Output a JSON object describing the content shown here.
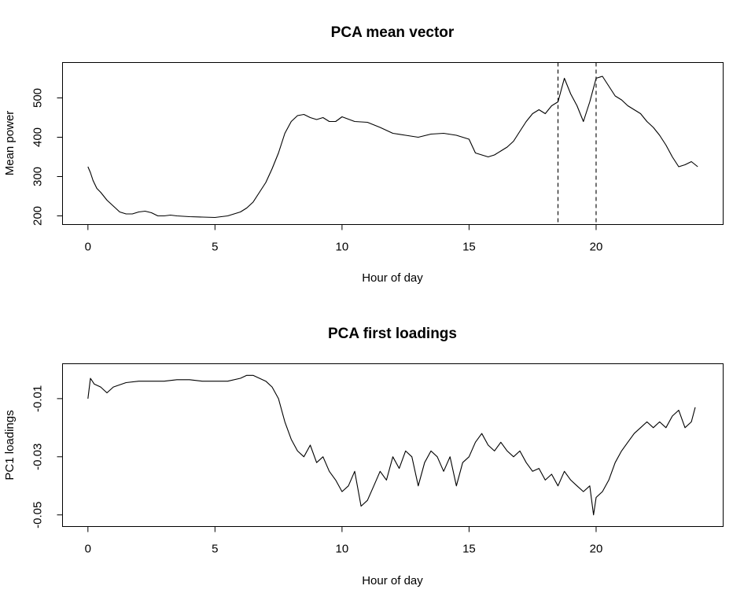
{
  "chart_data": [
    {
      "type": "line",
      "title": "PCA mean vector",
      "xlabel": "Hour of day",
      "ylabel": "Mean power",
      "xlim": [
        -1,
        25
      ],
      "ylim": [
        178,
        590
      ],
      "xticks": [
        0,
        5,
        10,
        15,
        20
      ],
      "yticks": [
        200,
        300,
        400,
        500
      ],
      "grid": false,
      "vlines": [
        18.5,
        20.0
      ],
      "series": [
        {
          "x": [
            0,
            0.1,
            0.2,
            0.35,
            0.5,
            0.75,
            1,
            1.25,
            1.5,
            1.75,
            2,
            2.25,
            2.5,
            2.75,
            3,
            3.25,
            3.5,
            4,
            4.5,
            5,
            5.5,
            5.75,
            6,
            6.25,
            6.5,
            6.75,
            7,
            7.25,
            7.5,
            7.75,
            8,
            8.25,
            8.5,
            8.75,
            9,
            9.25,
            9.5,
            9.75,
            10,
            10.5,
            11,
            11.5,
            12,
            12.5,
            13,
            13.5,
            14,
            14.5,
            15,
            15.25,
            15.5,
            15.75,
            16,
            16.25,
            16.5,
            16.75,
            17,
            17.25,
            17.5,
            17.75,
            18,
            18.25,
            18.5,
            18.75,
            19,
            19.25,
            19.5,
            19.75,
            20,
            20.25,
            20.5,
            20.75,
            21,
            21.25,
            21.5,
            21.75,
            22,
            22.25,
            22.5,
            22.75,
            23,
            23.25,
            23.5,
            23.75,
            24
          ],
          "y": [
            325,
            310,
            290,
            270,
            260,
            240,
            225,
            210,
            205,
            205,
            210,
            212,
            208,
            200,
            200,
            202,
            200,
            198,
            197,
            196,
            200,
            205,
            210,
            220,
            235,
            260,
            285,
            320,
            360,
            410,
            440,
            455,
            458,
            450,
            445,
            450,
            440,
            440,
            452,
            440,
            438,
            425,
            410,
            405,
            400,
            408,
            410,
            405,
            395,
            360,
            355,
            350,
            355,
            365,
            375,
            390,
            415,
            440,
            460,
            470,
            460,
            480,
            490,
            550,
            510,
            480,
            440,
            490,
            550,
            555,
            530,
            505,
            495,
            480,
            470,
            460,
            440,
            425,
            405,
            380,
            350,
            325,
            330,
            338,
            325
          ]
        }
      ]
    },
    {
      "type": "line",
      "title": "PCA first loadings",
      "xlabel": "Hour of day",
      "ylabel": "PC1 loadings",
      "xlim": [
        -1,
        25
      ],
      "ylim": [
        -0.054,
        0.002
      ],
      "xticks": [
        0,
        5,
        10,
        15,
        20
      ],
      "yticks": [
        -0.05,
        -0.03,
        -0.01
      ],
      "ytick_labels": [
        "-0.05",
        "-0.03",
        "-0.01"
      ],
      "grid": false,
      "series": [
        {
          "x": [
            0,
            0.1,
            0.25,
            0.5,
            0.75,
            1,
            1.5,
            2,
            2.5,
            3,
            3.5,
            4,
            4.5,
            5,
            5.5,
            6,
            6.25,
            6.5,
            6.75,
            7,
            7.25,
            7.5,
            7.75,
            8,
            8.25,
            8.5,
            8.75,
            9,
            9.25,
            9.5,
            9.75,
            10,
            10.25,
            10.5,
            10.75,
            11,
            11.25,
            11.5,
            11.75,
            12,
            12.25,
            12.5,
            12.75,
            13,
            13.25,
            13.5,
            13.75,
            14,
            14.25,
            14.5,
            14.75,
            15,
            15.25,
            15.5,
            15.75,
            16,
            16.25,
            16.5,
            16.75,
            17,
            17.25,
            17.5,
            17.75,
            18,
            18.25,
            18.5,
            18.75,
            19,
            19.25,
            19.5,
            19.75,
            19.9,
            20,
            20.25,
            20.5,
            20.75,
            21,
            21.25,
            21.5,
            21.75,
            22,
            22.25,
            22.5,
            22.75,
            23,
            23.25,
            23.5,
            23.75,
            23.9
          ],
          "y": [
            -0.01,
            -0.003,
            -0.005,
            -0.006,
            -0.008,
            -0.006,
            -0.0045,
            -0.004,
            -0.004,
            -0.004,
            -0.0035,
            -0.0035,
            -0.004,
            -0.004,
            -0.004,
            -0.003,
            -0.002,
            -0.002,
            -0.003,
            -0.004,
            -0.006,
            -0.01,
            -0.018,
            -0.024,
            -0.028,
            -0.03,
            -0.026,
            -0.032,
            -0.03,
            -0.035,
            -0.038,
            -0.042,
            -0.04,
            -0.035,
            -0.047,
            -0.045,
            -0.04,
            -0.035,
            -0.038,
            -0.03,
            -0.034,
            -0.028,
            -0.03,
            -0.04,
            -0.032,
            -0.028,
            -0.03,
            -0.035,
            -0.03,
            -0.04,
            -0.032,
            -0.03,
            -0.025,
            -0.022,
            -0.026,
            -0.028,
            -0.025,
            -0.028,
            -0.03,
            -0.028,
            -0.032,
            -0.035,
            -0.034,
            -0.038,
            -0.036,
            -0.04,
            -0.035,
            -0.038,
            -0.04,
            -0.042,
            -0.04,
            -0.05,
            -0.044,
            -0.042,
            -0.038,
            -0.032,
            -0.028,
            -0.025,
            -0.022,
            -0.02,
            -0.018,
            -0.02,
            -0.018,
            -0.02,
            -0.016,
            -0.014,
            -0.02,
            -0.018,
            -0.013
          ]
        }
      ]
    }
  ]
}
